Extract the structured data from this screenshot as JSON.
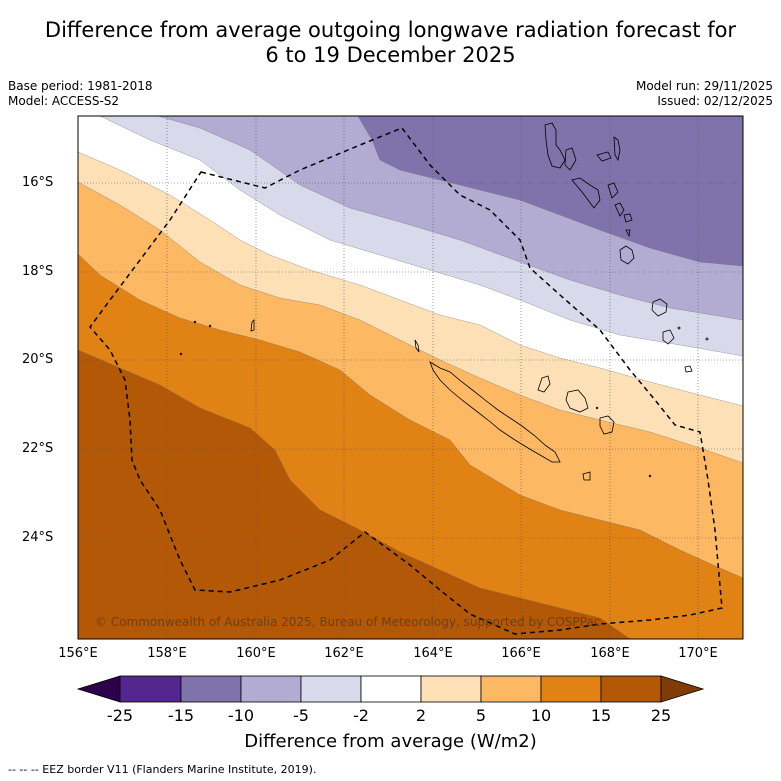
{
  "title_line1": "Difference from average outgoing longwave radiation forecast for",
  "title_line2": "6 to 19 December 2025",
  "base_period": "Base period: 1981-2018",
  "model": "Model: ACCESS-S2",
  "model_run": "Model run: 29/11/2025",
  "issued": "Issued: 02/12/2025",
  "copyright": "© Commonwealth of Australia 2025, Bureau of Meteorology, supported by COSPPac",
  "x_ticks": [
    "156°E",
    "158°E",
    "160°E",
    "162°E",
    "164°E",
    "166°E",
    "168°E",
    "170°E"
  ],
  "y_ticks": [
    "16°S",
    "18°S",
    "20°S",
    "22°S",
    "24°S"
  ],
  "colorbar": {
    "labels": [
      "-25",
      "-15",
      "-10",
      "-5",
      "-2",
      "2",
      "5",
      "10",
      "15",
      "25"
    ],
    "colors": [
      "#54278f",
      "#8073ac",
      "#b2abd2",
      "#d8daeb",
      "#ffffff",
      "#fee0b6",
      "#fdb863",
      "#e08214",
      "#b35806"
    ],
    "under_color": "#2d004b",
    "over_color": "#7f3b08",
    "title": "Difference from average (W/m2)"
  },
  "legend_text": "--  --  -- EEZ border V11 (Flanders Marine Institute, 2019)."
}
